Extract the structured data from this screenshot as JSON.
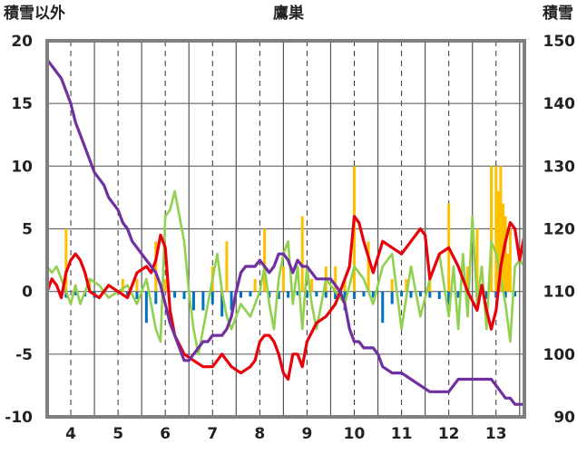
{
  "chart_data": {
    "type": "line",
    "title": "鷹巣",
    "y_left_label": "積雪以外",
    "y_right_label": "積雪",
    "y_left_range": [
      -10,
      20
    ],
    "y_right_range": [
      90,
      150
    ],
    "y_left_ticks": [
      "20",
      "15",
      "10",
      "5",
      "0",
      "-5",
      "-10"
    ],
    "y_right_ticks": [
      "150",
      "140",
      "130",
      "120",
      "110",
      "100",
      "90"
    ],
    "x_range": [
      3.5,
      13.6
    ],
    "x_ticks": [
      "4",
      "5",
      "6",
      "7",
      "8",
      "9",
      "10",
      "11",
      "12",
      "13"
    ],
    "colors": {
      "temperature_max": "#e8000b",
      "temperature_min": "#92d050",
      "snow_depth": "#7030a0",
      "precipitation": "#ffc000",
      "temperature_anomaly": "#0070c0",
      "frame": "#7f7f7f"
    },
    "series": [
      {
        "key": "temperature_max",
        "axis": "left",
        "x": [
          3.5,
          3.6,
          3.7,
          3.8,
          3.9,
          4.0,
          4.1,
          4.2,
          4.3,
          4.4,
          4.6,
          4.8,
          5.0,
          5.2,
          5.4,
          5.6,
          5.7,
          5.8,
          5.9,
          6.0,
          6.1,
          6.2,
          6.4,
          6.6,
          6.8,
          7.0,
          7.2,
          7.4,
          7.6,
          7.8,
          7.9,
          8.0,
          8.1,
          8.2,
          8.3,
          8.4,
          8.5,
          8.6,
          8.7,
          8.8,
          8.9,
          9.0,
          9.2,
          9.4,
          9.6,
          9.8,
          9.9,
          10.0,
          10.1,
          10.2,
          10.4,
          10.6,
          10.8,
          11.0,
          11.2,
          11.4,
          11.5,
          11.6,
          11.8,
          12.0,
          12.2,
          12.4,
          12.6,
          12.7,
          12.8,
          12.9,
          13.0,
          13.1,
          13.2,
          13.3,
          13.4,
          13.5,
          13.6
        ],
        "y": [
          0,
          1,
          0.5,
          -0.5,
          1.5,
          2.5,
          3.0,
          2.5,
          1.5,
          0,
          -0.5,
          0.5,
          0,
          -0.5,
          1.5,
          2.0,
          1.5,
          2.5,
          4.5,
          3.5,
          -1.5,
          -3.5,
          -5,
          -5.5,
          -6,
          -6,
          -5,
          -6,
          -6.5,
          -6,
          -5.5,
          -4,
          -3.5,
          -3.5,
          -4,
          -5,
          -6.5,
          -7,
          -5,
          -5,
          -6,
          -4,
          -2.5,
          -2,
          -1,
          1,
          2,
          6,
          5.5,
          4,
          1.5,
          4,
          3.5,
          3,
          4,
          5,
          4.5,
          1,
          3,
          3.5,
          2,
          0,
          -1.5,
          0.5,
          -1.5,
          -3,
          -1.5,
          2,
          4,
          5.5,
          5,
          2.5,
          4.5
        ]
      },
      {
        "key": "temperature_min",
        "axis": "left",
        "x": [
          3.5,
          3.6,
          3.7,
          3.8,
          3.9,
          4.0,
          4.1,
          4.2,
          4.3,
          4.4,
          4.6,
          4.8,
          5.0,
          5.2,
          5.4,
          5.6,
          5.7,
          5.8,
          5.9,
          6.0,
          6.1,
          6.2,
          6.3,
          6.4,
          6.5,
          6.6,
          6.7,
          6.8,
          6.9,
          7.0,
          7.1,
          7.2,
          7.3,
          7.4,
          7.6,
          7.8,
          8.0,
          8.1,
          8.2,
          8.3,
          8.4,
          8.5,
          8.6,
          8.7,
          8.8,
          8.9,
          9.0,
          9.1,
          9.2,
          9.4,
          9.6,
          9.8,
          10.0,
          10.2,
          10.4,
          10.6,
          10.8,
          11.0,
          11.2,
          11.4,
          11.6,
          11.8,
          12.0,
          12.1,
          12.2,
          12.3,
          12.4,
          12.5,
          12.6,
          12.7,
          12.8,
          12.9,
          13.0,
          13.1,
          13.2,
          13.3,
          13.4,
          13.5,
          13.6
        ],
        "y": [
          2,
          1.5,
          2,
          1,
          0,
          -1,
          0.5,
          -1,
          0,
          1,
          0.5,
          -0.5,
          0,
          0.5,
          -1,
          1,
          -1,
          -3,
          -4,
          6,
          6.5,
          8,
          6,
          4,
          0,
          -3,
          -5,
          -3,
          -1,
          1,
          3,
          0,
          -2,
          -3,
          -1,
          -2,
          0,
          2,
          -1,
          -3,
          1,
          3,
          4,
          -1,
          2,
          -3,
          2,
          -1,
          -3,
          1,
          0,
          -1,
          2,
          1,
          -1,
          2,
          3,
          -3,
          2,
          -2,
          1,
          3,
          -2,
          2,
          -3,
          3,
          -2,
          6,
          -1,
          2,
          -3,
          4,
          3,
          1,
          -1,
          -4,
          2,
          2.5,
          2
        ]
      },
      {
        "key": "snow_depth",
        "axis": "right",
        "x": [
          3.5,
          3.6,
          3.7,
          3.8,
          3.9,
          4.0,
          4.1,
          4.2,
          4.3,
          4.4,
          4.5,
          4.6,
          4.7,
          4.8,
          4.9,
          5.0,
          5.1,
          5.2,
          5.3,
          5.4,
          5.5,
          5.6,
          5.7,
          5.8,
          5.9,
          6.0,
          6.1,
          6.2,
          6.3,
          6.4,
          6.5,
          6.6,
          6.7,
          6.8,
          6.9,
          7.0,
          7.1,
          7.2,
          7.3,
          7.4,
          7.5,
          7.6,
          7.7,
          7.8,
          7.9,
          8.0,
          8.1,
          8.2,
          8.3,
          8.4,
          8.5,
          8.6,
          8.7,
          8.8,
          8.9,
          9.0,
          9.1,
          9.2,
          9.3,
          9.4,
          9.5,
          9.6,
          9.7,
          9.8,
          9.9,
          10.0,
          10.1,
          10.2,
          10.3,
          10.4,
          10.5,
          10.6,
          10.8,
          11.0,
          11.2,
          11.4,
          11.6,
          11.8,
          12.0,
          12.2,
          12.4,
          12.6,
          12.8,
          12.9,
          13.0,
          13.1,
          13.2,
          13.3,
          13.4,
          13.5,
          13.6
        ],
        "y": [
          147,
          146,
          145,
          144,
          142,
          140,
          137,
          135,
          133,
          131,
          129,
          128,
          127,
          125,
          124,
          123,
          121,
          120,
          118,
          117,
          116,
          115,
          114,
          113,
          111,
          108,
          105,
          103,
          101,
          99,
          99,
          100,
          101,
          102,
          102,
          103,
          103,
          103,
          104,
          106,
          110,
          113,
          114,
          114,
          114,
          115,
          114,
          113,
          114,
          116,
          116,
          115,
          113,
          115,
          114,
          114,
          113,
          112,
          112,
          112,
          112,
          111,
          110,
          108,
          104,
          102,
          102,
          101,
          101,
          101,
          100,
          98,
          97,
          97,
          96,
          95,
          94,
          94,
          94,
          96,
          96,
          96,
          96,
          96,
          95,
          94,
          93,
          93,
          92,
          92,
          92
        ]
      },
      {
        "key": "precipitation",
        "axis": "left",
        "type": "bar",
        "x": [
          3.9,
          4.4,
          5.1,
          5.4,
          5.8,
          6.0,
          7.0,
          7.3,
          7.9,
          8.1,
          8.5,
          8.9,
          9.1,
          9.4,
          9.6,
          9.8,
          10.0,
          10.3,
          10.8,
          11.1,
          11.6,
          12.0,
          12.4,
          12.6,
          12.9,
          13.0,
          13.05,
          13.1,
          13.15,
          13.2,
          13.25,
          13.3
        ],
        "y": [
          5,
          1,
          1,
          1,
          4,
          1,
          2,
          4,
          1,
          5,
          2,
          6,
          1,
          2,
          2,
          1,
          10,
          4,
          1,
          1,
          1,
          7,
          2,
          5,
          10,
          10,
          8,
          10,
          7,
          6,
          3,
          5
        ]
      },
      {
        "key": "temperature_anomaly",
        "axis": "left",
        "type": "bar",
        "x": [
          3.9,
          4.1,
          4.3,
          4.5,
          5.2,
          5.4,
          5.6,
          5.8,
          6.2,
          6.4,
          6.6,
          6.8,
          7.0,
          7.2,
          7.4,
          7.6,
          7.8,
          8.0,
          8.2,
          8.4,
          8.6,
          8.8,
          9.0,
          9.2,
          9.4,
          9.6,
          9.8,
          10.0,
          10.2,
          10.4,
          10.6,
          10.8,
          11.0,
          11.2,
          11.4,
          11.6,
          11.8,
          12.0,
          12.2,
          12.4,
          12.6,
          12.8,
          13.0,
          13.2,
          13.4
        ],
        "y": [
          -0.5,
          -0.3,
          -0.4,
          -0.5,
          -0.3,
          -0.6,
          -2.5,
          -1,
          -0.5,
          -0.6,
          -1.5,
          -1.5,
          -1,
          -2,
          -1.5,
          -0.5,
          -0.4,
          -0.3,
          -0.5,
          -0.6,
          -0.5,
          -0.3,
          -0.5,
          -0.4,
          -0.5,
          -0.6,
          -1.5,
          -0.6,
          -0.4,
          -0.5,
          -2.5,
          -1,
          -0.4,
          -0.5,
          -0.4,
          -0.5,
          -0.6,
          -1,
          -0.5,
          -0.4,
          -0.5,
          -0.6,
          -0.5,
          -0.5,
          -0.4
        ]
      }
    ]
  }
}
